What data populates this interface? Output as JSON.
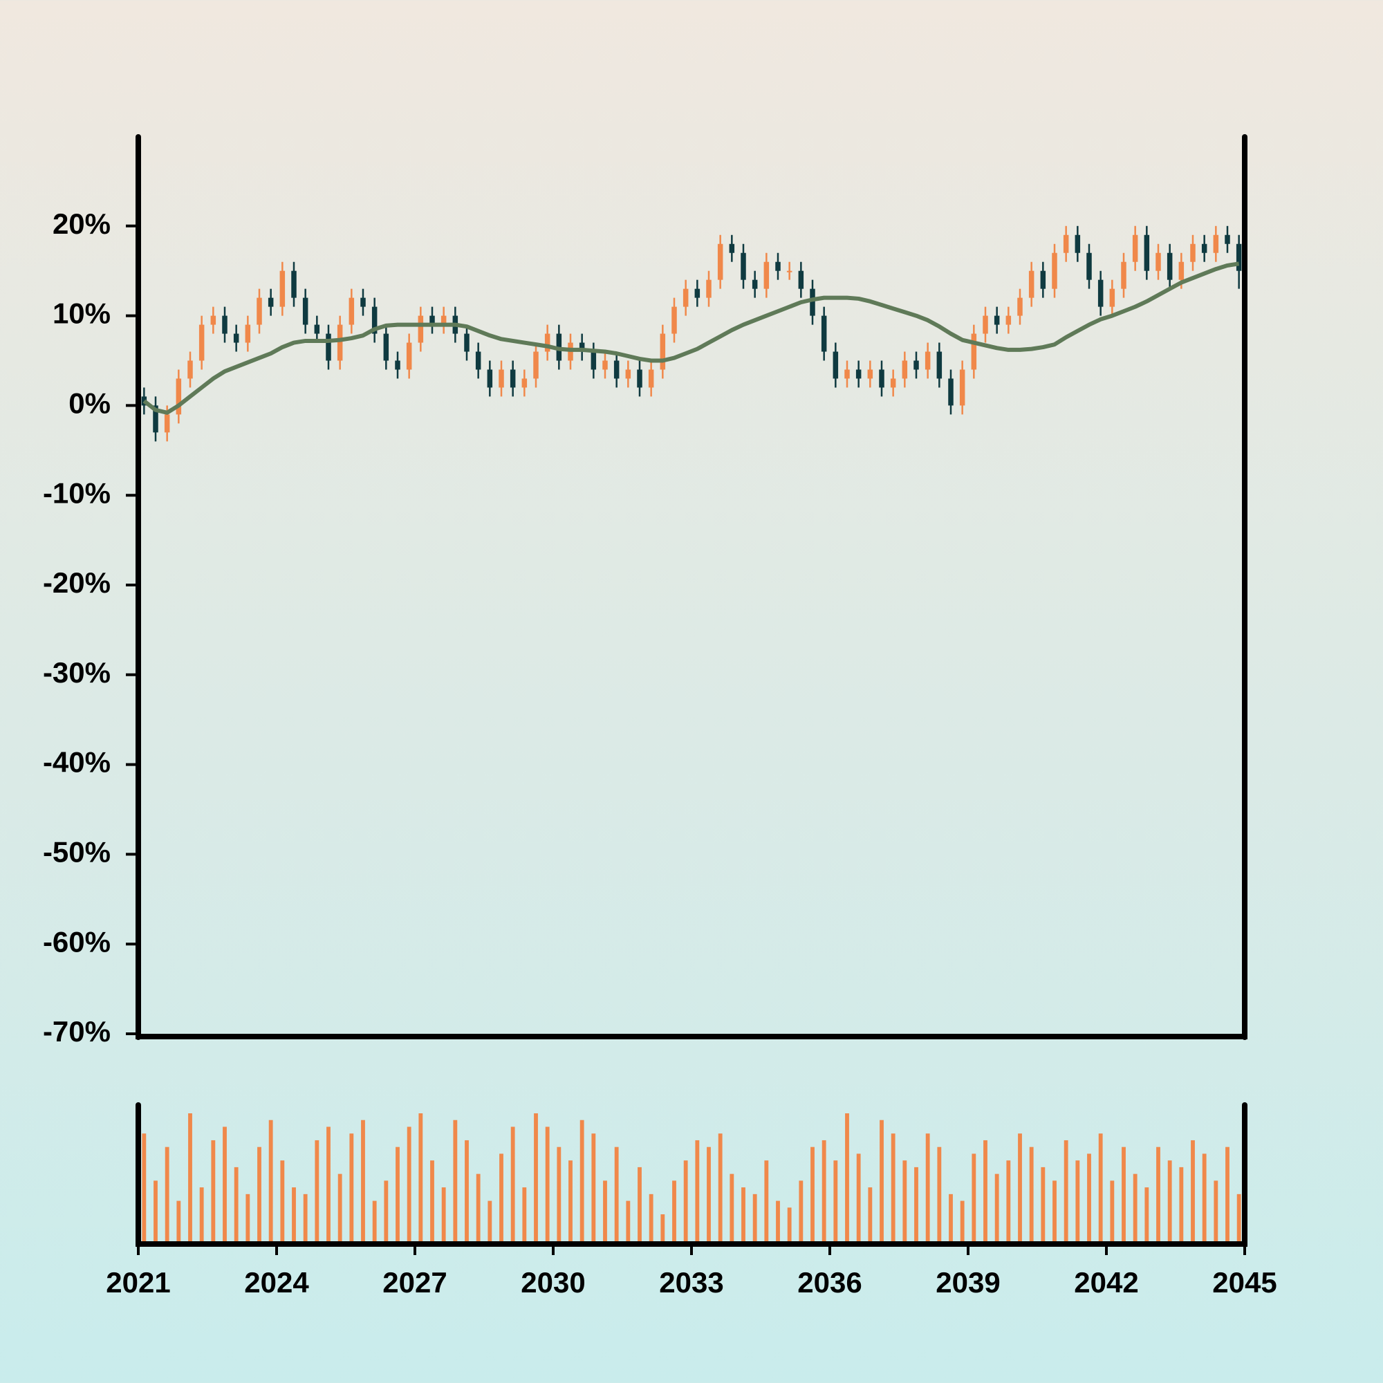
{
  "chart_data": {
    "type": "candlestick",
    "x": [
      2021.125,
      2021.375,
      2021.625,
      2021.875,
      2022.125,
      2022.375,
      2022.625,
      2022.875,
      2023.125,
      2023.375,
      2023.625,
      2023.875,
      2024.125,
      2024.375,
      2024.625,
      2024.875,
      2025.125,
      2025.375,
      2025.625,
      2025.875,
      2026.125,
      2026.375,
      2026.625,
      2026.875,
      2027.125,
      2027.375,
      2027.625,
      2027.875,
      2028.125,
      2028.375,
      2028.625,
      2028.875,
      2029.125,
      2029.375,
      2029.625,
      2029.875,
      2030.125,
      2030.375,
      2030.625,
      2030.875,
      2031.125,
      2031.375,
      2031.625,
      2031.875,
      2032.125,
      2032.375,
      2032.625,
      2032.875,
      2033.125,
      2033.375,
      2033.625,
      2033.875,
      2034.125,
      2034.375,
      2034.625,
      2034.875,
      2035.125,
      2035.375,
      2035.625,
      2035.875,
      2036.125,
      2036.375,
      2036.625,
      2036.875,
      2037.125,
      2037.375,
      2037.625,
      2037.875,
      2038.125,
      2038.375,
      2038.625,
      2038.875,
      2039.125,
      2039.375,
      2039.625,
      2039.875,
      2040.125,
      2040.375,
      2040.625,
      2040.875,
      2041.125,
      2041.375,
      2041.625,
      2041.875,
      2042.125,
      2042.375,
      2042.625,
      2042.875,
      2043.125,
      2043.375,
      2043.625,
      2043.875,
      2044.125,
      2044.375,
      2044.625,
      2044.875
    ],
    "open": [
      1,
      0,
      -3,
      -1,
      3,
      5,
      9,
      10,
      8,
      7,
      9,
      12,
      11,
      15,
      12,
      9,
      8,
      5,
      9,
      12,
      11,
      8,
      5,
      4,
      7,
      10,
      9,
      10,
      8,
      6,
      4,
      2,
      4,
      2,
      3,
      6,
      8,
      5,
      7,
      6,
      4,
      5,
      3,
      4,
      2,
      4,
      8,
      11,
      13,
      12,
      14,
      18,
      17,
      14,
      13,
      16,
      15,
      15,
      13,
      10,
      6,
      3,
      4,
      3,
      4,
      2,
      3,
      5,
      4,
      6,
      3,
      0,
      4,
      8,
      10,
      9,
      10,
      12,
      15,
      13,
      17,
      19,
      17,
      14,
      11,
      13,
      16,
      19,
      15,
      17,
      14,
      16,
      18,
      17,
      19,
      18
    ],
    "high": [
      2,
      1,
      0,
      4,
      6,
      10,
      11,
      11,
      9,
      10,
      13,
      13,
      16,
      16,
      13,
      10,
      9,
      10,
      13,
      13,
      12,
      9,
      6,
      8,
      11,
      11,
      11,
      11,
      9,
      7,
      5,
      5,
      5,
      4,
      7,
      9,
      9,
      8,
      8,
      7,
      6,
      6,
      5,
      5,
      5,
      9,
      12,
      14,
      14,
      15,
      19,
      19,
      18,
      15,
      17,
      17,
      16,
      16,
      14,
      11,
      7,
      5,
      5,
      5,
      5,
      4,
      6,
      6,
      7,
      7,
      4,
      5,
      9,
      11,
      11,
      11,
      13,
      16,
      16,
      18,
      20,
      20,
      18,
      15,
      14,
      17,
      20,
      20,
      18,
      18,
      17,
      19,
      19,
      20,
      20,
      19
    ],
    "low": [
      -1,
      -4,
      -4,
      -2,
      2,
      4,
      8,
      7,
      6,
      6,
      8,
      10,
      10,
      11,
      8,
      7,
      4,
      4,
      8,
      10,
      7,
      4,
      3,
      3,
      6,
      8,
      8,
      7,
      5,
      3,
      1,
      1,
      1,
      1,
      2,
      5,
      4,
      4,
      5,
      3,
      3,
      2,
      2,
      1,
      1,
      3,
      7,
      10,
      11,
      11,
      13,
      16,
      13,
      12,
      12,
      14,
      14,
      12,
      9,
      5,
      2,
      2,
      2,
      2,
      1,
      1,
      2,
      3,
      3,
      2,
      -1,
      -1,
      3,
      7,
      8,
      8,
      9,
      11,
      12,
      12,
      16,
      16,
      13,
      10,
      10,
      12,
      15,
      14,
      14,
      13,
      13,
      15,
      16,
      16,
      17,
      13
    ],
    "close": [
      0,
      -3,
      -1,
      3,
      5,
      9,
      10,
      8,
      7,
      9,
      12,
      11,
      15,
      12,
      9,
      8,
      5,
      9,
      12,
      11,
      8,
      5,
      4,
      7,
      10,
      9,
      10,
      8,
      6,
      4,
      2,
      4,
      2,
      3,
      6,
      8,
      5,
      7,
      6,
      4,
      5,
      3,
      4,
      2,
      4,
      8,
      11,
      13,
      12,
      14,
      18,
      17,
      14,
      13,
      16,
      15,
      15,
      13,
      10,
      6,
      3,
      4,
      3,
      4,
      2,
      3,
      5,
      4,
      6,
      3,
      0,
      4,
      8,
      10,
      9,
      10,
      12,
      15,
      13,
      17,
      19,
      17,
      14,
      11,
      13,
      16,
      19,
      15,
      17,
      14,
      16,
      18,
      17,
      19,
      18,
      15
    ],
    "up_color": "#f0884a",
    "down_color": "#0f3a40",
    "moving_average": {
      "color": "#5f7a58",
      "values": [
        0.5,
        -0.5,
        -0.8,
        0,
        1,
        2,
        3,
        3.8,
        4.3,
        4.8,
        5.3,
        5.8,
        6.5,
        7,
        7.2,
        7.2,
        7.2,
        7.3,
        7.5,
        7.8,
        8.5,
        8.9,
        9,
        9,
        9,
        9,
        9,
        9,
        8.8,
        8.3,
        7.8,
        7.4,
        7.2,
        7,
        6.8,
        6.6,
        6.3,
        6.2,
        6.2,
        6.1,
        6,
        5.8,
        5.5,
        5.2,
        5,
        5,
        5.3,
        5.8,
        6.3,
        7,
        7.7,
        8.4,
        9,
        9.5,
        10,
        10.5,
        11,
        11.5,
        11.8,
        12,
        12,
        12,
        11.9,
        11.6,
        11.2,
        10.8,
        10.4,
        10,
        9.5,
        8.8,
        8,
        7.3,
        7,
        6.7,
        6.4,
        6.2,
        6.2,
        6.3,
        6.5,
        6.8,
        7.6,
        8.3,
        9,
        9.6,
        10,
        10.5,
        11,
        11.6,
        12.3,
        13,
        13.7,
        14.2,
        14.7,
        15.2,
        15.6,
        15.8
      ]
    },
    "volume": {
      "color": "#f0884a",
      "values": [
        80,
        45,
        70,
        30,
        95,
        40,
        75,
        85,
        55,
        35,
        70,
        90,
        60,
        40,
        35,
        75,
        85,
        50,
        80,
        90,
        30,
        45,
        70,
        85,
        95,
        60,
        40,
        90,
        75,
        50,
        30,
        65,
        85,
        40,
        95,
        85,
        70,
        60,
        90,
        80,
        45,
        70,
        30,
        55,
        35,
        20,
        45,
        60,
        75,
        70,
        80,
        50,
        40,
        35,
        60,
        30,
        25,
        45,
        70,
        75,
        60,
        95,
        65,
        40,
        90,
        80,
        60,
        55,
        80,
        70,
        35,
        30,
        65,
        75,
        50,
        60,
        80,
        70,
        55,
        45,
        75,
        60,
        65,
        80,
        45,
        70,
        50,
        40,
        70,
        60,
        55,
        75,
        65,
        45,
        70,
        35
      ]
    },
    "xlim": [
      2021,
      2045
    ],
    "xticks": [
      2021,
      2024,
      2027,
      2030,
      2033,
      2036,
      2039,
      2042,
      2045
    ],
    "ylim": [
      -70,
      30
    ],
    "yticks": [
      {
        "value": 20,
        "label": "20%"
      },
      {
        "value": 10,
        "label": "10%"
      },
      {
        "value": 0,
        "label": "0%"
      },
      {
        "value": -10,
        "label": "-10%"
      },
      {
        "value": -20,
        "label": "-20%"
      },
      {
        "value": -30,
        "label": "-30%"
      },
      {
        "value": -40,
        "label": "-40%"
      },
      {
        "value": -50,
        "label": "-50%"
      },
      {
        "value": -60,
        "label": "-60%"
      },
      {
        "value": -70,
        "label": "-70%"
      }
    ]
  }
}
